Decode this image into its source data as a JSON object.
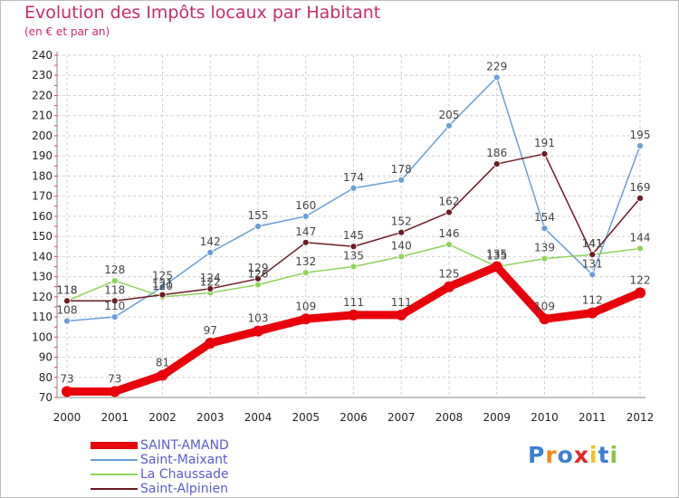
{
  "title": "Evolution des Impôts locaux par Habitant",
  "subtitle": "(en € et par an)",
  "logo": "Proxiti",
  "colors": {
    "title": "#cc2a6b",
    "legend_text": "#5b5bd6",
    "grid": "#d0d0d0"
  },
  "chart_data": {
    "type": "line",
    "x": [
      "2000",
      "2001",
      "2002",
      "2003",
      "2004",
      "2005",
      "2006",
      "2007",
      "2008",
      "2009",
      "2010",
      "2011",
      "2012"
    ],
    "ylim": [
      70,
      240
    ],
    "yticks": [
      70,
      80,
      90,
      100,
      110,
      120,
      130,
      140,
      150,
      160,
      170,
      180,
      190,
      200,
      210,
      220,
      230,
      240
    ],
    "grid": true,
    "legend_position": "bottom-left",
    "series": [
      {
        "name": "SAINT-AMAND",
        "color": "#e8000b",
        "values": [
          73,
          73,
          81,
          97,
          103,
          109,
          111,
          111,
          125,
          135,
          109,
          112,
          122
        ]
      },
      {
        "name": "Saint-Maixant",
        "color": "#6a9fd8",
        "values": [
          108,
          110,
          125,
          142,
          155,
          160,
          174,
          178,
          205,
          229,
          154,
          131,
          195
        ]
      },
      {
        "name": "La Chaussade",
        "color": "#8fd45a",
        "values": [
          118,
          128,
          120,
          122,
          126,
          132,
          135,
          140,
          146,
          135,
          139,
          141,
          144
        ]
      },
      {
        "name": "Saint-Alpinien",
        "color": "#6b1a22",
        "values": [
          118,
          118,
          121,
          124,
          129,
          147,
          145,
          152,
          162,
          186,
          191,
          141,
          169
        ]
      }
    ]
  }
}
